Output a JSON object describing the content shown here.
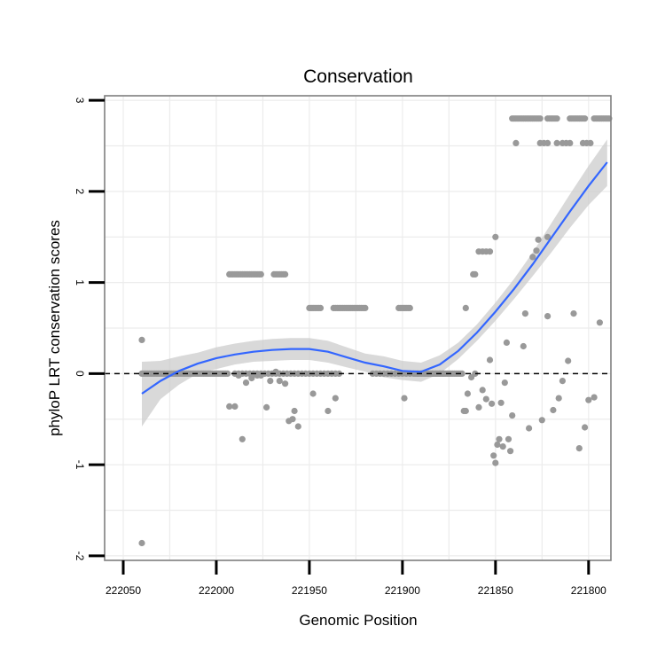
{
  "chart_data": {
    "type": "scatter",
    "title": "Conservation",
    "xlabel": "Genomic Position",
    "ylabel": "phyloP LRT conservation scores",
    "x_reversed": true,
    "xlim": [
      222060,
      221788
    ],
    "ylim": [
      -2.05,
      3.05
    ],
    "x_ticks": [
      222050,
      222000,
      221950,
      221900,
      221850,
      221800
    ],
    "x_tick_labels": [
      "222050",
      "222000",
      "221950",
      "221900",
      "221850",
      "221800"
    ],
    "y_ticks": [
      -2,
      -1,
      0,
      1,
      2,
      3
    ],
    "y_tick_labels": [
      "-2",
      "-1",
      "0",
      "1",
      "2",
      "3"
    ],
    "grid": true,
    "reference_line": {
      "y": 0,
      "style": "dashed"
    },
    "colors": {
      "points": "#999999",
      "smooth_line": "#3366ff",
      "ribbon": "#cccccc",
      "grid": "#ececec",
      "panel_border": "#7f7f7f",
      "reference": "#000000"
    },
    "points": [
      {
        "x": 222040,
        "y": 0.37
      },
      {
        "x": 222040,
        "y": -1.86
      },
      {
        "x": 221993,
        "y": -0.36
      },
      {
        "x": 221990,
        "y": -0.36
      },
      {
        "x": 221988,
        "y": -0.02
      },
      {
        "x": 221986,
        "y": -0.72
      },
      {
        "x": 221984,
        "y": -0.1
      },
      {
        "x": 221981,
        "y": -0.05
      },
      {
        "x": 221978,
        "y": -0.02
      },
      {
        "x": 221976,
        "y": -0.02
      },
      {
        "x": 221973,
        "y": -0.37
      },
      {
        "x": 221971,
        "y": -0.08
      },
      {
        "x": 221968,
        "y": 0.02
      },
      {
        "x": 221966,
        "y": -0.08
      },
      {
        "x": 221963,
        "y": -0.11
      },
      {
        "x": 221961,
        "y": -0.52
      },
      {
        "x": 221959,
        "y": -0.5
      },
      {
        "x": 221958,
        "y": -0.41
      },
      {
        "x": 221956,
        "y": -0.58
      },
      {
        "x": 221948,
        "y": -0.22
      },
      {
        "x": 221940,
        "y": -0.41
      },
      {
        "x": 221936,
        "y": -0.27
      },
      {
        "x": 221899,
        "y": -0.27
      },
      {
        "x": 221867,
        "y": -0.41
      },
      {
        "x": 221866,
        "y": -0.41
      },
      {
        "x": 221865,
        "y": -0.22
      },
      {
        "x": 221863,
        "y": -0.04
      },
      {
        "x": 221861,
        "y": 0.0
      },
      {
        "x": 221859,
        "y": -0.37
      },
      {
        "x": 221857,
        "y": -0.18
      },
      {
        "x": 221855,
        "y": -0.28
      },
      {
        "x": 221853,
        "y": 0.15
      },
      {
        "x": 221852,
        "y": -0.33
      },
      {
        "x": 221851,
        "y": -0.9
      },
      {
        "x": 221850,
        "y": -0.98
      },
      {
        "x": 221849,
        "y": -0.78
      },
      {
        "x": 221848,
        "y": -0.72
      },
      {
        "x": 221847,
        "y": -0.32
      },
      {
        "x": 221846,
        "y": -0.8
      },
      {
        "x": 221845,
        "y": -0.1
      },
      {
        "x": 221844,
        "y": 0.34
      },
      {
        "x": 221843,
        "y": -0.72
      },
      {
        "x": 221842,
        "y": -0.85
      },
      {
        "x": 221841,
        "y": -0.46
      },
      {
        "x": 221835,
        "y": 0.3
      },
      {
        "x": 221834,
        "y": 0.66
      },
      {
        "x": 221832,
        "y": -0.6
      },
      {
        "x": 221825,
        "y": -0.51
      },
      {
        "x": 221822,
        "y": 0.63
      },
      {
        "x": 221819,
        "y": -0.4
      },
      {
        "x": 221816,
        "y": -0.27
      },
      {
        "x": 221814,
        "y": -0.08
      },
      {
        "x": 221811,
        "y": 0.14
      },
      {
        "x": 221808,
        "y": 0.66
      },
      {
        "x": 221805,
        "y": -0.82
      },
      {
        "x": 221802,
        "y": -0.59
      },
      {
        "x": 221800,
        "y": -0.29
      },
      {
        "x": 221797,
        "y": -0.26
      },
      {
        "x": 221794,
        "y": 0.56
      },
      {
        "x": 221866,
        "y": 0.72
      },
      {
        "x": 221862,
        "y": 1.09
      },
      {
        "x": 221861,
        "y": 1.09
      },
      {
        "x": 221859,
        "y": 1.34
      },
      {
        "x": 221857,
        "y": 1.34
      },
      {
        "x": 221855,
        "y": 1.34
      },
      {
        "x": 221853,
        "y": 1.34
      },
      {
        "x": 221850,
        "y": 1.5
      },
      {
        "x": 221830,
        "y": 1.28
      },
      {
        "x": 221828,
        "y": 1.35
      },
      {
        "x": 221827,
        "y": 1.47
      },
      {
        "x": 221822,
        "y": 1.5
      },
      {
        "x": 221839,
        "y": 2.53
      },
      {
        "x": 221826,
        "y": 2.53
      },
      {
        "x": 221824,
        "y": 2.53
      },
      {
        "x": 221822,
        "y": 2.53
      },
      {
        "x": 221817,
        "y": 2.53
      },
      {
        "x": 221814,
        "y": 2.53
      },
      {
        "x": 221812,
        "y": 2.53
      },
      {
        "x": 221810,
        "y": 2.53
      },
      {
        "x": 221803,
        "y": 2.53
      },
      {
        "x": 221801,
        "y": 2.53
      },
      {
        "x": 221799,
        "y": 2.53
      }
    ],
    "point_runs": [
      {
        "y": 0.0,
        "x_from": 222040,
        "x_to": 221994,
        "step": 1
      },
      {
        "y": 0.0,
        "x_from": 221990,
        "x_to": 221934,
        "step": 2
      },
      {
        "y": 0.0,
        "x_from": 221916,
        "x_to": 221877,
        "step": 2
      },
      {
        "y": 0.0,
        "x_from": 221893,
        "x_to": 221868,
        "step": 1
      },
      {
        "y": 1.09,
        "x_from": 221993,
        "x_to": 221976,
        "step": 1
      },
      {
        "y": 1.09,
        "x_from": 221969,
        "x_to": 221963,
        "step": 1
      },
      {
        "y": 0.72,
        "x_from": 221950,
        "x_to": 221944,
        "step": 1
      },
      {
        "y": 0.72,
        "x_from": 221937,
        "x_to": 221920,
        "step": 1
      },
      {
        "y": 0.72,
        "x_from": 221902,
        "x_to": 221896,
        "step": 1
      },
      {
        "y": 2.8,
        "x_from": 221841,
        "x_to": 221826,
        "step": 1
      },
      {
        "y": 2.8,
        "x_from": 221822,
        "x_to": 221817,
        "step": 1
      },
      {
        "y": 2.8,
        "x_from": 221810,
        "x_to": 221802,
        "step": 1
      },
      {
        "y": 2.8,
        "x_from": 221797,
        "x_to": 221789,
        "step": 1
      }
    ],
    "smooth": {
      "x": [
        222040,
        222030,
        222020,
        222010,
        222000,
        221990,
        221980,
        221970,
        221960,
        221950,
        221940,
        221930,
        221920,
        221910,
        221900,
        221890,
        221880,
        221870,
        221860,
        221850,
        221840,
        221830,
        221820,
        221810,
        221800,
        221790
      ],
      "y": [
        -0.22,
        -0.08,
        0.03,
        0.11,
        0.17,
        0.21,
        0.24,
        0.26,
        0.27,
        0.27,
        0.24,
        0.18,
        0.12,
        0.08,
        0.03,
        0.02,
        0.1,
        0.25,
        0.45,
        0.68,
        0.93,
        1.2,
        1.49,
        1.78,
        2.06,
        2.32
      ],
      "lower": [
        -0.58,
        -0.28,
        -0.12,
        0.0,
        0.05,
        0.1,
        0.13,
        0.14,
        0.15,
        0.15,
        0.12,
        0.07,
        0.02,
        -0.04,
        -0.07,
        -0.09,
        0.0,
        0.16,
        0.36,
        0.58,
        0.82,
        1.07,
        1.33,
        1.6,
        1.85,
        2.06
      ],
      "upper": [
        0.13,
        0.14,
        0.19,
        0.23,
        0.29,
        0.33,
        0.36,
        0.38,
        0.39,
        0.39,
        0.36,
        0.29,
        0.22,
        0.19,
        0.14,
        0.12,
        0.2,
        0.34,
        0.54,
        0.78,
        1.04,
        1.33,
        1.65,
        1.97,
        2.28,
        2.57
      ]
    }
  }
}
